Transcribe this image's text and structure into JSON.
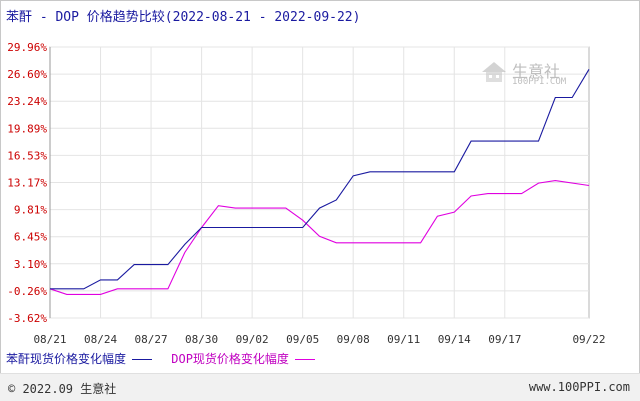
{
  "title": "苯酐 - DOP 价格趋势比较(2022-08-21 - 2022-09-22)",
  "watermark": {
    "name": "生意社",
    "url": "100PPI.COM"
  },
  "footer": {
    "left": "© 2022.09 生意社",
    "right": "www.100PPI.com"
  },
  "legend": {
    "s1_label": "苯酐现货价格变化幅度",
    "s2_label": "DOP现货价格变化幅度"
  },
  "colors": {
    "s1": "#1a1aa0",
    "s2": "#e000e0",
    "grid": "#e4e4e4",
    "axis": "#cc0000"
  },
  "chart_data": {
    "type": "line",
    "title": "苯酐 - DOP 价格趋势比较(2022-08-21 - 2022-09-22)",
    "xlabel": "",
    "ylabel": "",
    "ylim": [
      -3.62,
      29.96
    ],
    "y_ticks": [
      "29.96%",
      "26.60%",
      "23.24%",
      "19.89%",
      "16.53%",
      "13.17%",
      "9.81%",
      "6.45%",
      "3.10%",
      "-0.26%",
      "-3.62%"
    ],
    "y_tick_values": [
      29.96,
      26.6,
      23.24,
      19.89,
      16.53,
      13.17,
      9.81,
      6.45,
      3.1,
      -0.26,
      -3.62
    ],
    "x_ticks": [
      "08/21",
      "08/24",
      "08/27",
      "08/30",
      "09/02",
      "09/05",
      "09/08",
      "09/11",
      "09/14",
      "09/17",
      "09/22"
    ],
    "x_tick_positions": [
      0,
      3,
      6,
      9,
      12,
      15,
      18,
      21,
      24,
      27,
      32
    ],
    "x_range": [
      0,
      32
    ],
    "grid": true,
    "legend_position": "bottom-left",
    "series": [
      {
        "name": "苯酐现货价格变化幅度",
        "points": [
          [
            0,
            0
          ],
          [
            2,
            0
          ],
          [
            3,
            1.1
          ],
          [
            4,
            1.1
          ],
          [
            5,
            3
          ],
          [
            7,
            3
          ],
          [
            8,
            5.5
          ],
          [
            9,
            7.6
          ],
          [
            15,
            7.6
          ],
          [
            16,
            10
          ],
          [
            17,
            11
          ],
          [
            18,
            14
          ],
          [
            19,
            14.5
          ],
          [
            24,
            14.5
          ],
          [
            25,
            18.3
          ],
          [
            29,
            18.3
          ],
          [
            30,
            23.7
          ],
          [
            31,
            23.7
          ],
          [
            32,
            27.2
          ]
        ]
      },
      {
        "name": "DOP现货价格变化幅度",
        "points": [
          [
            0,
            0
          ],
          [
            1,
            -0.7
          ],
          [
            3,
            -0.7
          ],
          [
            4,
            0
          ],
          [
            7,
            0
          ],
          [
            8,
            4.5
          ],
          [
            9,
            7.6
          ],
          [
            10,
            10.3
          ],
          [
            11,
            10
          ],
          [
            14,
            10
          ],
          [
            15,
            8.5
          ],
          [
            16,
            6.5
          ],
          [
            17,
            5.7
          ],
          [
            22,
            5.7
          ],
          [
            23,
            9
          ],
          [
            24,
            9.5
          ],
          [
            25,
            11.5
          ],
          [
            26,
            11.8
          ],
          [
            28,
            11.8
          ],
          [
            29,
            13.1
          ],
          [
            30,
            13.4
          ],
          [
            32,
            12.8
          ]
        ]
      }
    ]
  }
}
